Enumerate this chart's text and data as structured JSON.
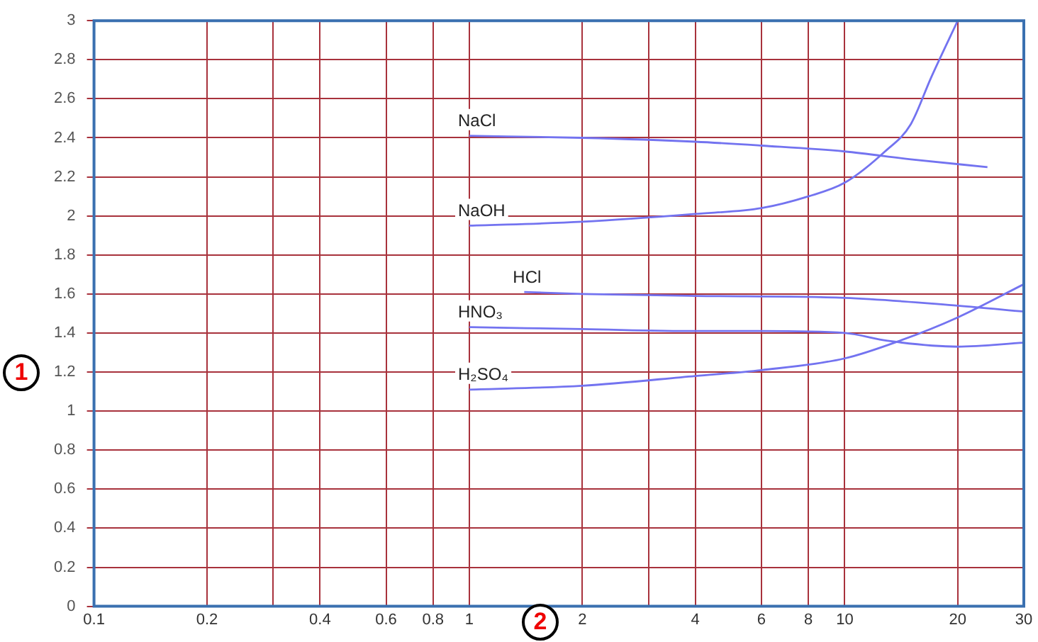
{
  "chart_data": {
    "type": "line",
    "log": "x",
    "grid": true,
    "legend": false,
    "marker": "none",
    "line_style": "solid",
    "xlim": [
      0.1,
      30
    ],
    "xticks": [
      0.1,
      0.2,
      {
        "value": 0.3,
        "label": null
      },
      0.4,
      0.6,
      0.8,
      1,
      2,
      {
        "value": 3,
        "label": null
      },
      4,
      6,
      8,
      10,
      20,
      30
    ],
    "ylim": [
      0,
      3
    ],
    "yticks": [
      0,
      0.2,
      0.4,
      0.6,
      0.8,
      1,
      1.2,
      1.4,
      1.6,
      1.8,
      2,
      2.2,
      2.4,
      2.6,
      2.8,
      3
    ],
    "annotations": [
      "1",
      "2"
    ],
    "series": [
      {
        "name": "NaCl",
        "color": "#7373f0",
        "x": [
          1,
          2,
          4,
          6,
          10,
          15,
          24
        ],
        "values": [
          2.41,
          2.4,
          2.38,
          2.36,
          2.33,
          2.29,
          2.25
        ]
      },
      {
        "name": "NaOH",
        "color": "#7373f0",
        "x": [
          1,
          2,
          4,
          6,
          8,
          10,
          12.8,
          15,
          17,
          20
        ],
        "values": [
          1.95,
          1.97,
          2.01,
          2.04,
          2.1,
          2.17,
          2.33,
          2.47,
          2.71,
          3.0
        ]
      },
      {
        "name": "HCl",
        "color": "#7373f0",
        "x": [
          1.4,
          2,
          4,
          10,
          20,
          30
        ],
        "values": [
          1.61,
          1.6,
          1.59,
          1.58,
          1.54,
          1.51
        ]
      },
      {
        "name": "HNO₃",
        "color": "#7373f0",
        "x": [
          1,
          2,
          4,
          6,
          10,
          13,
          20,
          30
        ],
        "values": [
          1.43,
          1.42,
          1.41,
          1.41,
          1.4,
          1.36,
          1.33,
          1.35
        ]
      },
      {
        "name": "H₂SO₄",
        "color": "#7373f0",
        "x": [
          1,
          2,
          4,
          6,
          10,
          14,
          20,
          30
        ],
        "values": [
          1.11,
          1.13,
          1.18,
          1.21,
          1.27,
          1.36,
          1.48,
          1.65
        ]
      }
    ]
  }
}
